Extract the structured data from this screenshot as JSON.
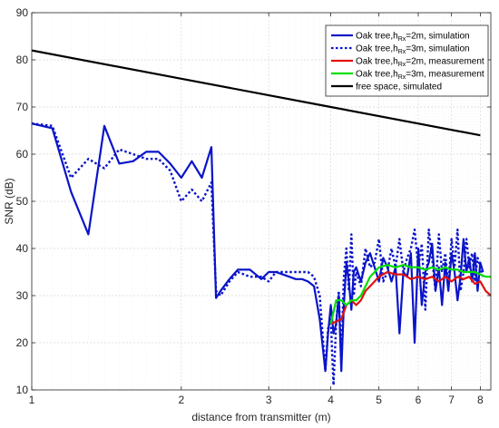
{
  "chart_data": {
    "type": "line",
    "title": "",
    "xlabel": "distance from transmitter (m)",
    "ylabel": "SNR (dB)",
    "xscale": "log",
    "xlim": [
      1,
      8.4
    ],
    "ylim": [
      10,
      90
    ],
    "xticks": [
      1,
      2,
      3,
      4,
      5,
      6,
      7,
      8
    ],
    "yticks": [
      10,
      20,
      30,
      40,
      50,
      60,
      70,
      80,
      90
    ],
    "grid": true,
    "legend_position": "top-right",
    "series": [
      {
        "name": "Oak tree,h_Rx=2m, simulation",
        "legend_main": "Oak tree,h",
        "legend_sub": "Rx",
        "legend_rest": "=2m, simulation",
        "color": "#0a14c8",
        "style": "solid",
        "x": [
          1.0,
          1.1,
          1.2,
          1.3,
          1.4,
          1.5,
          1.6,
          1.7,
          1.8,
          1.9,
          2.0,
          2.1,
          2.2,
          2.3,
          2.35,
          2.4,
          2.5,
          2.6,
          2.75,
          2.9,
          3.0,
          3.1,
          3.2,
          3.3,
          3.4,
          3.5,
          3.6,
          3.7,
          3.8,
          3.9,
          3.95,
          4.0,
          4.05,
          4.1,
          4.15,
          4.2,
          4.25,
          4.3,
          4.35,
          4.4,
          4.45,
          4.5,
          4.6,
          4.7,
          4.8,
          4.9,
          5.0,
          5.1,
          5.2,
          5.3,
          5.4,
          5.5,
          5.6,
          5.7,
          5.8,
          5.9,
          6.0,
          6.1,
          6.2,
          6.3,
          6.4,
          6.5,
          6.6,
          6.7,
          6.8,
          6.9,
          7.0,
          7.1,
          7.2,
          7.3,
          7.4,
          7.5,
          7.6,
          7.7,
          7.8,
          7.9,
          8.0,
          8.1
        ],
        "y": [
          66.5,
          65.5,
          52,
          43,
          66,
          58,
          58.5,
          60.5,
          60.5,
          58,
          55,
          58.5,
          55,
          61.5,
          29.5,
          31,
          33.5,
          35.5,
          35.5,
          33.5,
          35,
          35,
          34.5,
          34,
          33.5,
          33.5,
          33,
          32,
          25,
          14,
          22,
          28,
          22,
          24,
          30,
          14,
          28,
          37,
          33,
          27,
          35,
          36,
          33,
          37,
          39,
          36,
          33,
          38,
          36,
          33,
          36,
          22,
          35,
          34,
          39,
          20,
          40,
          28,
          35,
          37,
          41,
          31,
          36,
          28,
          37,
          31,
          39,
          35,
          29,
          34,
          42,
          35,
          38,
          33,
          39,
          31,
          37,
          35
        ]
      },
      {
        "name": "Oak tree,h_Rx=3m, simulation",
        "legend_main": "Oak tree,h",
        "legend_sub": "Rx",
        "legend_rest": "=3m, simulation",
        "color": "#0a14c8",
        "style": "dotted",
        "x": [
          1.0,
          1.1,
          1.2,
          1.3,
          1.4,
          1.5,
          1.6,
          1.7,
          1.8,
          1.9,
          2.0,
          2.1,
          2.2,
          2.3,
          2.35,
          2.4,
          2.5,
          2.6,
          2.75,
          2.9,
          3.0,
          3.1,
          3.2,
          3.3,
          3.4,
          3.5,
          3.6,
          3.7,
          3.8,
          3.9,
          3.95,
          4.0,
          4.05,
          4.1,
          4.15,
          4.2,
          4.25,
          4.3,
          4.35,
          4.4,
          4.45,
          4.5,
          4.6,
          4.7,
          4.8,
          4.9,
          5.0,
          5.1,
          5.2,
          5.3,
          5.4,
          5.5,
          5.6,
          5.7,
          5.8,
          5.9,
          6.0,
          6.1,
          6.2,
          6.3,
          6.4,
          6.5,
          6.6,
          6.7,
          6.8,
          6.9,
          7.0,
          7.1,
          7.2,
          7.3,
          7.4,
          7.5,
          7.6,
          7.7,
          7.8,
          7.9,
          8.0,
          8.1
        ],
        "y": [
          66.5,
          66,
          55,
          59,
          57,
          61,
          60,
          59,
          59,
          56.5,
          50,
          52.5,
          50,
          54,
          31,
          30,
          33,
          35,
          34,
          34,
          33,
          35,
          35,
          35,
          35,
          35,
          35,
          34,
          30,
          14,
          23,
          25,
          11,
          24,
          31,
          16,
          34,
          40,
          31,
          43,
          30,
          35,
          32,
          40,
          36,
          37,
          42,
          33,
          35,
          40,
          36,
          42,
          35,
          38,
          40,
          44,
          36,
          41,
          27,
          44,
          38,
          31,
          43,
          35,
          39,
          32,
          42,
          36,
          44,
          31,
          35,
          42,
          36,
          39,
          33,
          38,
          36,
          34
        ]
      },
      {
        "name": "Oak tree,h_Rx=2m, measurement",
        "legend_main": "Oak tree,h",
        "legend_sub": "Rx",
        "legend_rest": "=2m, measurement",
        "color": "#e01010",
        "style": "solid",
        "x": [
          4.0,
          4.1,
          4.2,
          4.3,
          4.4,
          4.5,
          4.6,
          4.7,
          4.8,
          4.9,
          5.0,
          5.2,
          5.4,
          5.6,
          5.8,
          6.0,
          6.2,
          6.4,
          6.6,
          6.8,
          7.0,
          7.2,
          7.4,
          7.6,
          7.8,
          8.0,
          8.2,
          8.4
        ],
        "y": [
          24,
          24.5,
          25,
          28,
          29,
          28,
          29,
          31,
          32,
          33,
          34,
          35,
          34.5,
          34.5,
          33.5,
          34,
          33.5,
          34,
          33,
          34,
          33,
          34,
          33.5,
          34,
          32.5,
          33,
          31,
          30
        ]
      },
      {
        "name": "Oak tree,h_Rx=3m, measurement",
        "legend_main": "Oak tree,h",
        "legend_sub": "Rx",
        "legend_rest": "=3m, measurement",
        "color": "#00e000",
        "style": "solid",
        "x": [
          4.0,
          4.1,
          4.2,
          4.3,
          4.4,
          4.5,
          4.6,
          4.7,
          4.8,
          4.9,
          5.0,
          5.2,
          5.4,
          5.6,
          5.8,
          6.0,
          6.2,
          6.4,
          6.6,
          6.8,
          7.0,
          7.2,
          7.4,
          7.6,
          7.8,
          8.0,
          8.2,
          8.4
        ],
        "y": [
          24,
          29,
          29,
          28,
          29,
          29,
          30,
          32,
          34,
          35,
          36,
          36.5,
          36,
          36.5,
          36,
          36,
          35.5,
          36,
          35.5,
          36,
          35.5,
          35.5,
          35,
          35,
          35,
          34.5,
          34,
          34
        ]
      },
      {
        "name": "free space, simulated",
        "legend_main": "free space, simulated",
        "legend_sub": "",
        "legend_rest": "",
        "color": "#000000",
        "style": "solid",
        "x": [
          1.0,
          2.0,
          4.0,
          8.0
        ],
        "y": [
          82,
          76,
          70,
          64
        ]
      }
    ]
  }
}
